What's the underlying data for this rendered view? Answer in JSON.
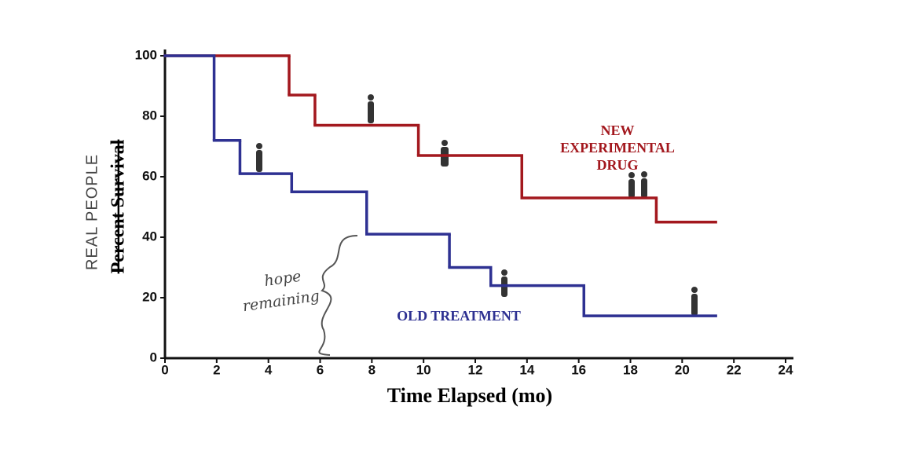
{
  "chart_data": {
    "type": "step",
    "xlabel": "Time Elapsed (mo)",
    "ylabel": "Percent Survival",
    "ylabel_note": "REAL PEOPLE",
    "xlim": [
      0,
      24
    ],
    "xticks": [
      0,
      2,
      4,
      6,
      8,
      10,
      12,
      14,
      16,
      18,
      20,
      22,
      24
    ],
    "ylim": [
      0,
      100
    ],
    "yticks": [
      0,
      20,
      40,
      60,
      80,
      100
    ],
    "grid": false,
    "series": [
      {
        "name": [
          "NEW",
          "EXPERIMENTAL",
          "DRUG"
        ],
        "color": "#a3181e",
        "x": [
          0,
          4.8,
          5.8,
          9.8,
          13.8,
          19,
          21.3
        ],
        "values": [
          100,
          87,
          77,
          67,
          53,
          45,
          45
        ]
      },
      {
        "name": [
          "OLD TREATMENT"
        ],
        "color": "#2e3192",
        "x": [
          0,
          1.9,
          2.9,
          4.9,
          7.8,
          11,
          12.6,
          16.2,
          21.3
        ],
        "values": [
          100,
          72,
          61,
          55,
          41,
          30,
          24,
          14,
          14
        ]
      }
    ],
    "annotation": [
      "hope",
      "remaining"
    ]
  }
}
